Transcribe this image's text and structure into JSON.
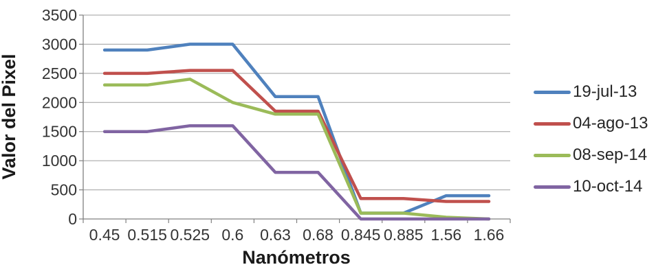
{
  "chart_data": {
    "type": "line",
    "title": "",
    "xlabel": "Nanómetros",
    "ylabel": "Valor del Pixel",
    "categories": [
      "0.45",
      "0.515",
      "0.525",
      "0.6",
      "0.63",
      "0.68",
      "0.845",
      "0.885",
      "1.56",
      "1.66"
    ],
    "series": [
      {
        "name": "19-jul-13",
        "color": "#4F81BD",
        "values": [
          2900,
          2900,
          3000,
          3000,
          2100,
          2100,
          100,
          100,
          400,
          400
        ]
      },
      {
        "name": "04-ago-13",
        "color": "#C0504D",
        "values": [
          2500,
          2500,
          2550,
          2550,
          1850,
          1850,
          350,
          350,
          300,
          300
        ]
      },
      {
        "name": "08-sep-14",
        "color": "#9BBB59",
        "values": [
          2300,
          2300,
          2400,
          2000,
          1800,
          1800,
          100,
          100,
          30,
          0
        ]
      },
      {
        "name": "10-oct-14",
        "color": "#8064A2",
        "values": [
          1500,
          1500,
          1600,
          1600,
          800,
          800,
          0,
          0,
          0,
          0
        ]
      }
    ],
    "ylim": [
      0,
      3500
    ],
    "yticks": [
      0,
      500,
      1000,
      1500,
      2000,
      2500,
      3000,
      3500
    ],
    "grid": true,
    "legend_position": "right"
  },
  "colors": {
    "grid": "#9E9E9E",
    "axis": "#808080",
    "background": "#FFFFFF"
  }
}
